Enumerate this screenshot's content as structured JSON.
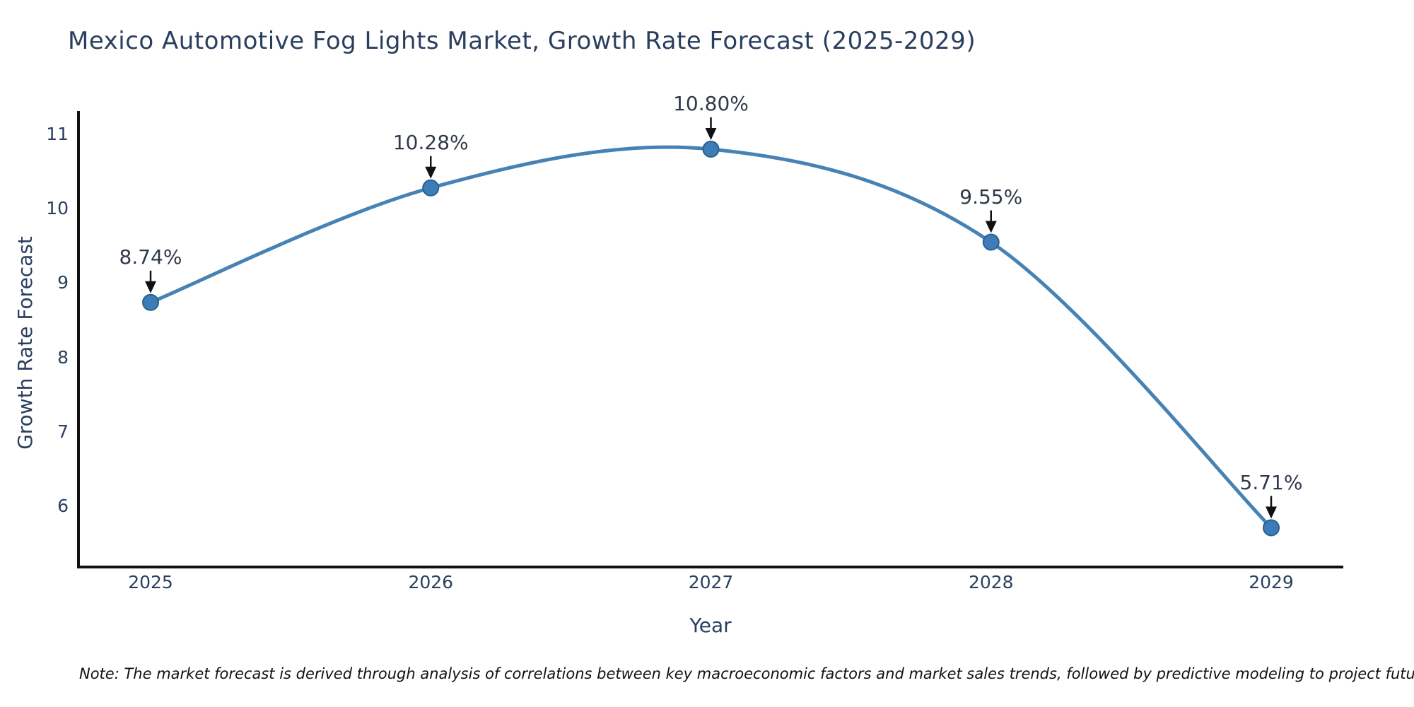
{
  "title": "Mexico Automotive Fog Lights Market, Growth Rate Forecast (2025-2029)",
  "note": "Note: The market forecast is derived through analysis of correlations between key macroeconomic factors and market sales trends, followed by predictive modeling to project future sales",
  "chart_data": {
    "type": "line",
    "line_shape": "spline",
    "title": "Mexico Automotive Fog Lights Market, Growth Rate Forecast (2025-2029)",
    "xlabel": "Year",
    "ylabel": "Growth Rate Forecast",
    "categories": [
      "2025",
      "2026",
      "2027",
      "2028",
      "2029"
    ],
    "values": [
      8.74,
      10.28,
      10.8,
      9.55,
      5.71
    ],
    "point_labels": [
      "8.74%",
      "10.28%",
      "10.80%",
      "9.55%",
      "5.71%"
    ],
    "y_ticks": [
      6,
      7,
      8,
      9,
      10,
      11
    ],
    "ylim": [
      5.18,
      11.3
    ],
    "grid": false,
    "legend": "none",
    "markers": true,
    "annotation_arrows": true,
    "colors": {
      "line": "#4682b4",
      "marker_fill": "#3c7db7",
      "marker_edge": "#2a618f",
      "axis_line": "#111111",
      "axis_text": "#2a3f5f",
      "annotation_text": "#30394a",
      "arrow": "#111111",
      "background": "#ffffff"
    }
  }
}
